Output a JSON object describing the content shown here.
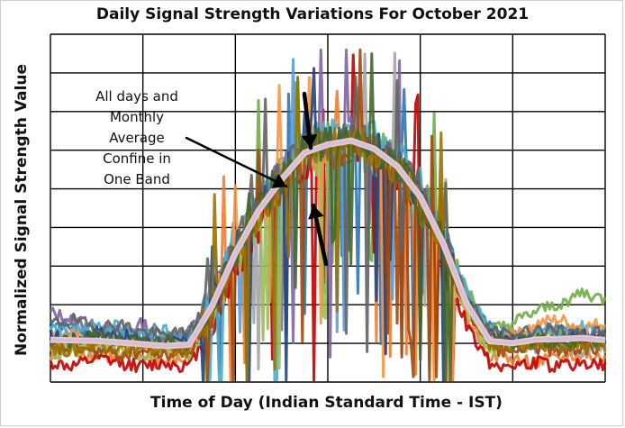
{
  "chart_data": {
    "type": "line",
    "title": "Daily Signal Strength Variations For October 2021",
    "xlabel": "Time of Day (Indian Standard Time - IST)",
    "ylabel": "Normalized Signal Strength Value",
    "grid": true,
    "legend": "none",
    "xlim": [
      0,
      24
    ],
    "ylim": [
      0,
      9
    ],
    "annotation": {
      "lines": [
        "All days and",
        "Monthly",
        "Average",
        "Confine in",
        "One Band"
      ]
    },
    "colors": [
      "#2e75b6",
      "#ed7d31",
      "#a5a5a5",
      "#70ad47",
      "#5b9bd5",
      "#c00000",
      "#8064a2",
      "#4bacc6",
      "#f79646",
      "#9bbb59",
      "#264478",
      "#9e480e",
      "#636363",
      "#997300",
      "#43682b",
      "#698ed0",
      "#f1975a",
      "#b7b7b7",
      "#ffcd33",
      "#7cafdd",
      "#8cc168",
      "#b3a2c7",
      "#93cddd",
      "#fac090",
      "#c3d69b",
      "#d99694",
      "#95b3d7",
      "#ccc1da",
      "#e6b9b8",
      "#b9cde5"
    ],
    "series": [
      {
        "values": [
          1.6,
          1.4,
          1.2,
          1.3,
          1.1,
          1.0,
          1.2,
          2.1,
          3.4,
          4.4,
          5.3,
          6.0,
          6.2,
          6.3,
          6.1,
          5.7,
          5.0,
          3.8,
          2.3,
          1.4,
          1.2,
          1.3,
          1.4,
          1.3,
          1.2
        ]
      },
      {
        "values": [
          0.6,
          0.8,
          0.7,
          0.6,
          0.7,
          0.5,
          0.6,
          1.8,
          3.2,
          4.3,
          5.2,
          5.8,
          6.0,
          6.1,
          6.0,
          5.6,
          4.6,
          3.4,
          1.7,
          0.7,
          0.6,
          0.5,
          0.6,
          0.7,
          0.6
        ]
      },
      {
        "values": [
          0.9,
          1.0,
          0.8,
          1.1,
          1.0,
          0.9,
          1.0,
          2.0,
          3.3,
          4.5,
          5.1,
          5.9,
          6.1,
          6.2,
          5.9,
          5.5,
          4.8,
          3.6,
          2.0,
          1.0,
          0.9,
          1.0,
          0.9,
          0.8,
          0.9
        ]
      },
      {
        "values": [
          1.0,
          1.1,
          1.2,
          1.0,
          0.9,
          1.1,
          1.1,
          2.3,
          3.6,
          4.6,
          5.4,
          6.1,
          6.3,
          6.4,
          6.2,
          5.8,
          5.1,
          3.9,
          2.4,
          1.3,
          1.5,
          1.8,
          2.0,
          2.3,
          2.1
        ]
      },
      {
        "values": [
          1.3,
          1.2,
          1.0,
          1.1,
          1.2,
          1.0,
          1.1,
          2.2,
          3.5,
          4.5,
          5.3,
          6.0,
          6.2,
          6.3,
          6.1,
          5.7,
          4.9,
          3.7,
          2.2,
          1.1,
          1.0,
          0.9,
          1.0,
          1.1,
          1.0
        ]
      },
      {
        "values": [
          0.5,
          0.4,
          0.6,
          0.5,
          0.4,
          0.5,
          0.4,
          1.5,
          2.9,
          4.0,
          5.0,
          5.6,
          5.9,
          6.0,
          5.8,
          5.3,
          4.4,
          3.1,
          1.5,
          0.5,
          0.4,
          0.5,
          0.4,
          0.5,
          0.4
        ]
      },
      {
        "values": [
          1.8,
          1.6,
          1.4,
          1.3,
          1.5,
          1.2,
          1.3,
          2.2,
          3.4,
          4.6,
          5.4,
          6.0,
          6.3,
          6.4,
          6.1,
          5.6,
          4.9,
          3.7,
          2.1,
          1.2,
          1.1,
          1.2,
          1.3,
          1.2,
          1.1
        ]
      },
      {
        "values": [
          1.4,
          1.3,
          1.5,
          1.4,
          1.2,
          1.3,
          1.2,
          2.1,
          3.5,
          4.7,
          5.5,
          6.2,
          6.4,
          6.5,
          6.3,
          5.9,
          5.1,
          3.8,
          2.3,
          1.3,
          1.2,
          1.3,
          1.2,
          1.4,
          1.3
        ]
      },
      {
        "values": [
          1.1,
          1.2,
          1.0,
          0.9,
          1.0,
          0.8,
          0.9,
          1.9,
          3.3,
          4.4,
          5.2,
          5.9,
          6.1,
          6.2,
          6.0,
          5.5,
          4.7,
          3.5,
          1.9,
          1.1,
          1.3,
          1.5,
          1.6,
          1.4,
          1.5
        ]
      },
      {
        "values": [
          0.7,
          0.8,
          0.9,
          0.8,
          0.7,
          0.8,
          0.7,
          1.7,
          3.1,
          4.2,
          5.0,
          5.7,
          5.9,
          6.0,
          5.8,
          5.4,
          4.5,
          3.3,
          1.8,
          0.8,
          0.9,
          1.1,
          1.2,
          1.0,
          1.1
        ]
      },
      {
        "values": [
          1.2,
          1.1,
          1.3,
          1.2,
          1.1,
          1.0,
          1.1,
          2.0,
          3.4,
          4.5,
          5.3,
          6.0,
          6.2,
          6.3,
          6.1,
          5.6,
          4.8,
          3.6,
          2.1,
          1.2,
          1.1,
          1.0,
          1.1,
          1.2,
          1.1
        ]
      },
      {
        "values": [
          0.8,
          0.9,
          0.8,
          0.7,
          0.8,
          0.7,
          0.8,
          1.8,
          3.2,
          4.3,
          5.1,
          5.8,
          6.0,
          6.1,
          5.9,
          5.4,
          4.6,
          3.4,
          1.9,
          0.9,
          0.8,
          0.9,
          0.8,
          0.9,
          0.8
        ]
      },
      {
        "values": [
          1.5,
          1.6,
          1.4,
          1.5,
          1.3,
          1.2,
          1.3,
          2.2,
          3.5,
          4.6,
          5.4,
          6.1,
          6.3,
          6.4,
          6.2,
          5.7,
          5.0,
          3.7,
          2.2,
          1.3,
          1.2,
          1.4,
          1.3,
          1.2,
          1.3
        ]
      },
      {
        "values": [
          0.9,
          0.8,
          1.0,
          0.9,
          0.8,
          0.9,
          0.8,
          1.9,
          3.3,
          4.4,
          5.2,
          5.9,
          6.1,
          6.2,
          6.0,
          5.5,
          4.7,
          3.5,
          2.0,
          1.0,
          0.9,
          1.0,
          0.9,
          1.0,
          0.9
        ]
      },
      {
        "values": [
          1.1,
          1.0,
          1.2,
          1.1,
          1.0,
          1.1,
          1.0,
          2.0,
          3.4,
          4.5,
          5.3,
          6.0,
          6.2,
          6.3,
          6.1,
          5.6,
          4.8,
          3.6,
          2.1,
          1.1,
          1.0,
          1.1,
          1.0,
          1.1,
          1.0
        ]
      }
    ]
  }
}
